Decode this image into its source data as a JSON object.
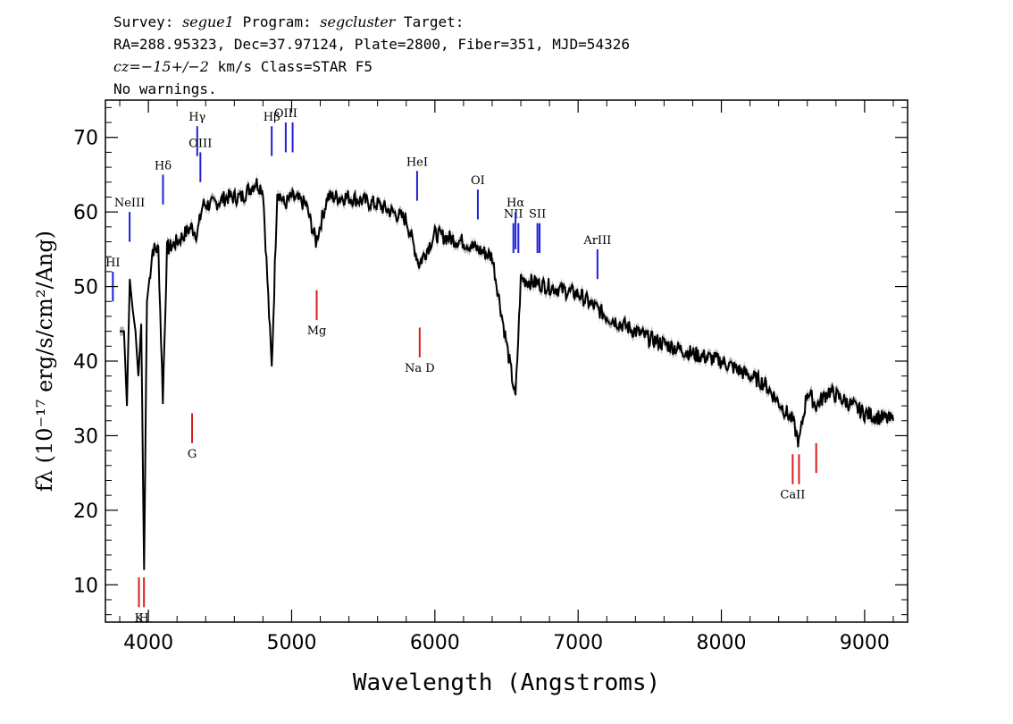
{
  "header": {
    "line1": {
      "survey_label": "Survey: ",
      "survey": "segue1",
      "program_label": " Program: ",
      "program": "segcluster",
      "target_label": " Target:"
    },
    "line2": "RA=288.95323, Dec=37.97124, Plate=2800, Fiber=351, MJD=54326",
    "line3": {
      "cz_label": "cz",
      "cz_value": "=−15+/−2",
      "cz_unit": " km/s Class=STAR F5"
    },
    "line4": "No warnings."
  },
  "colors": {
    "spectrum": "#000000",
    "error_band": "#b4b4b4",
    "emission": "#1f1fd6",
    "absorption": "#d61f1f"
  },
  "chart_data": {
    "type": "line",
    "xlabel": "Wavelength (Angstroms)",
    "ylabel": "fλ (10⁻¹⁷ erg/s/cm²/Ang)",
    "xlim": [
      3700,
      9300
    ],
    "ylim": [
      5,
      75
    ],
    "xticks": [
      4000,
      5000,
      6000,
      7000,
      8000,
      9000
    ],
    "yticks": [
      10,
      20,
      30,
      40,
      50,
      60,
      70
    ],
    "grid": false,
    "series": [
      {
        "x": [
          3800,
          3830,
          3850,
          3870,
          3890,
          3910,
          3930,
          3950,
          3970,
          3990,
          4030,
          4070,
          4101,
          4130,
          4200,
          4250,
          4300,
          4340,
          4380,
          4450,
          4550,
          4650,
          4750,
          4800,
          4861,
          4900,
          4950,
          5000,
          5100,
          5170,
          5250,
          5400,
          5600,
          5800,
          5890,
          6000,
          6200,
          6400,
          6563,
          6600,
          6800,
          7000,
          7200,
          7500,
          7800,
          8000,
          8300,
          8498,
          8542,
          8600,
          8662,
          8750,
          9000,
          9200
        ],
        "y": [
          44,
          44,
          34,
          51,
          47,
          44,
          38,
          45,
          12,
          48,
          55,
          55,
          35,
          55,
          56,
          57,
          58,
          57,
          61,
          61,
          62,
          62,
          64,
          63,
          39,
          63,
          61,
          62,
          61,
          56,
          62,
          62,
          61,
          59,
          53,
          57,
          56,
          54,
          35,
          51,
          50,
          49,
          46,
          43,
          41,
          40,
          37,
          32,
          29,
          36,
          34,
          36,
          33,
          32
        ]
      },
      {
        "name": "",
        "x": [],
        "y": []
      }
    ],
    "emission_lines": [
      {
        "label": "HI",
        "x": 3752,
        "y0": 48,
        "y1": 52
      },
      {
        "label": "NeIII",
        "x": 3869,
        "y0": 56,
        "y1": 60
      },
      {
        "label": "Hδ",
        "x": 4102,
        "y0": 61,
        "y1": 65
      },
      {
        "label": "Hγ",
        "x": 4341,
        "y0": 67.5,
        "y1": 71.5
      },
      {
        "label": "OIII",
        "x": 4363,
        "y0": 64,
        "y1": 68
      },
      {
        "label": "Hβ",
        "x": 4861,
        "y0": 67.5,
        "y1": 71.5
      },
      {
        "label": "OIII",
        "x": 4959,
        "y0": 68,
        "y1": 72
      },
      {
        "label": "",
        "x": 5007,
        "y0": 68,
        "y1": 72
      },
      {
        "label": "HeI",
        "x": 5876,
        "y0": 61.5,
        "y1": 65.5
      },
      {
        "label": "OI",
        "x": 6300,
        "y0": 59,
        "y1": 63
      },
      {
        "label": "NII",
        "x": 6548,
        "y0": 54.5,
        "y1": 58.5
      },
      {
        "label": "Hα",
        "x": 6563,
        "y0": 55,
        "y1": 60
      },
      {
        "label": "",
        "x": 6583,
        "y0": 54.5,
        "y1": 58.5
      },
      {
        "label": "SII",
        "x": 6716,
        "y0": 54.5,
        "y1": 58.5
      },
      {
        "label": "",
        "x": 6731,
        "y0": 54.5,
        "y1": 58.5
      },
      {
        "label": "ArIII",
        "x": 7135,
        "y0": 51,
        "y1": 55
      }
    ],
    "absorption_lines": [
      {
        "label": "K",
        "x": 3934,
        "y0": 7,
        "y1": 11
      },
      {
        "label": "H",
        "x": 3969,
        "y0": 7,
        "y1": 11
      },
      {
        "label": "G",
        "x": 4305,
        "y0": 29,
        "y1": 33
      },
      {
        "label": "Mg",
        "x": 5175,
        "y0": 45.5,
        "y1": 49.5
      },
      {
        "label": "Na D",
        "x": 5894,
        "y0": 40.5,
        "y1": 44.5
      },
      {
        "label": "CaII",
        "x": 8498,
        "y0": 23.5,
        "y1": 27.5
      },
      {
        "label": "",
        "x": 8542,
        "y0": 23.5,
        "y1": 27.5
      },
      {
        "label": "",
        "x": 8662,
        "y0": 25,
        "y1": 29
      }
    ]
  }
}
